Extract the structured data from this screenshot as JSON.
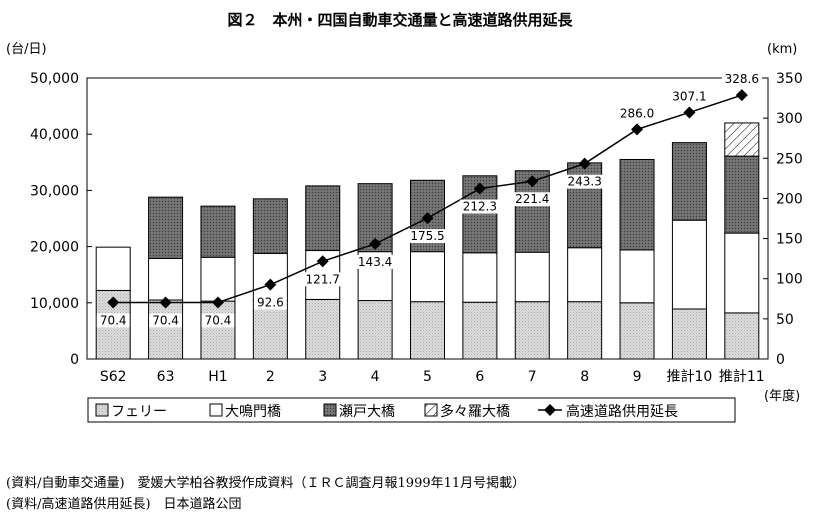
{
  "chart_data": {
    "type": "bar",
    "title": "図２　本州・四国自動車交通量と高速道路供用延長",
    "y_left_unit": "(台/日)",
    "y_right_unit": "(km)",
    "x_unit": "(年度)",
    "ylim_left": [
      0,
      50000
    ],
    "ylim_right": [
      0,
      350
    ],
    "y_left_ticks": [
      "0",
      "10,000",
      "20,000",
      "30,000",
      "40,000",
      "50,000"
    ],
    "y_right_ticks": [
      "0",
      "50",
      "100",
      "150",
      "200",
      "250",
      "300",
      "350"
    ],
    "categories": [
      "S62",
      "63",
      "H1",
      "2",
      "3",
      "4",
      "5",
      "6",
      "7",
      "8",
      "9",
      "推計10",
      "推計11"
    ],
    "series": [
      {
        "name": "フェリー",
        "kind": "stacked-bar",
        "pattern": "light-gray-dots",
        "values": [
          12200,
          10500,
          10300,
          10400,
          10600,
          10400,
          10200,
          10100,
          10200,
          10200,
          10000,
          8900,
          8200
        ]
      },
      {
        "name": "大鳴門橋",
        "kind": "stacked-bar",
        "pattern": "white",
        "values": [
          7700,
          7400,
          7800,
          8400,
          8700,
          8700,
          8900,
          8800,
          8800,
          9600,
          9400,
          15800,
          14200
        ]
      },
      {
        "name": "瀬戸大橋",
        "kind": "stacked-bar",
        "pattern": "dark-gray-dots",
        "values": [
          0,
          10900,
          9100,
          9700,
          11500,
          12100,
          12700,
          13700,
          14500,
          15100,
          16100,
          13800,
          13700
        ]
      },
      {
        "name": "多々羅大橋",
        "kind": "stacked-bar",
        "pattern": "hatched",
        "values": [
          0,
          0,
          0,
          0,
          0,
          0,
          0,
          0,
          0,
          0,
          0,
          0,
          5900
        ]
      },
      {
        "name": "高速道路供用延長",
        "kind": "line",
        "axis": "right",
        "values": [
          70.4,
          70.4,
          70.4,
          92.6,
          121.7,
          143.4,
          175.5,
          212.3,
          221.4,
          243.3,
          286.0,
          307.1,
          328.6
        ],
        "labels": [
          "70.4",
          "70.4",
          "70.4",
          "92.6",
          "121.7",
          "143.4",
          "175.5",
          "212.3",
          "221.4",
          "243.3",
          "286.0",
          "307.1",
          "328.6"
        ]
      }
    ],
    "legend_position": "bottom"
  },
  "notes": [
    "(資料/自動車交通量)　愛媛大学柏谷教授作成資料（ＩＲＣ調査月報1999年11月号掲載）",
    "(資料/高速道路供用延長)　日本道路公団"
  ]
}
